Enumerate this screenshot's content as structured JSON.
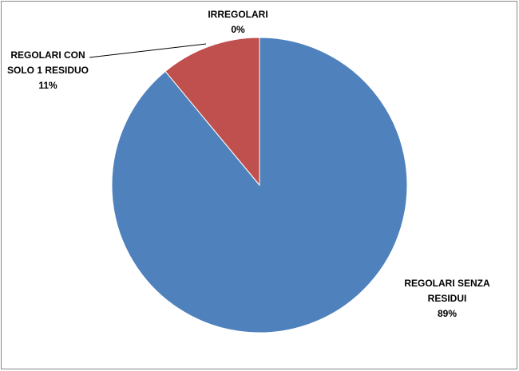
{
  "chart_data": {
    "type": "pie",
    "categories": [
      "REGOLARI SENZA RESIDUI",
      "REGOLARI CON SOLO 1 RESIDUO",
      "IRREGOLARI"
    ],
    "values": [
      89,
      11,
      0
    ],
    "value_labels": [
      "89%",
      "11%",
      "0%"
    ],
    "colors": [
      "#4f81bd",
      "#c0504d",
      "#9bbb59"
    ]
  }
}
